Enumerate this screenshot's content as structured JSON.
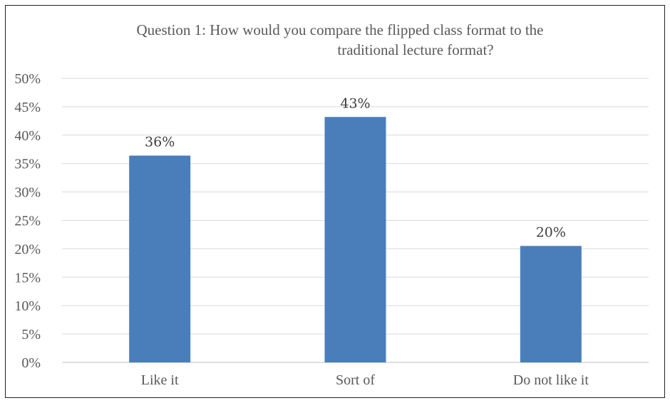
{
  "chart_data": {
    "type": "bar",
    "title_lines": [
      "Question 1: How would you compare the flipped class format to the",
      "traditional lecture format?"
    ],
    "categories": [
      "Like it",
      "Sort of",
      "Do not like it"
    ],
    "values": [
      36.4,
      43.2,
      20.5
    ],
    "data_labels": [
      "36%",
      "43%",
      "20%"
    ],
    "ylim": [
      0,
      50
    ],
    "y_ticks": [
      0,
      5,
      10,
      15,
      20,
      25,
      30,
      35,
      40,
      45,
      50
    ],
    "y_tick_labels": [
      "0%",
      "5%",
      "10%",
      "15%",
      "20%",
      "25%",
      "30%",
      "35%",
      "40%",
      "45%",
      "50%"
    ],
    "xlabel": "",
    "ylabel": "",
    "grid": true,
    "legend": false,
    "bar_color": "#4a7ebb",
    "grid_color": "#d9d9d9"
  }
}
